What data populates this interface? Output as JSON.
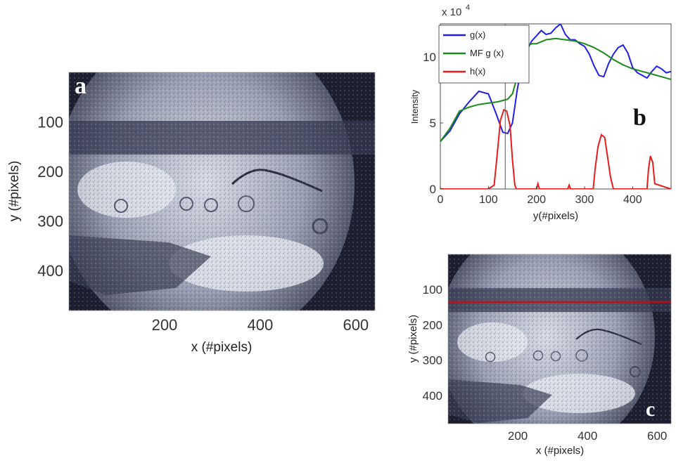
{
  "figure": {
    "panel_a": {
      "letter": "a",
      "xlabel": "x (#pixels)",
      "ylabel": "y (#pixels)"
    },
    "panel_b": {
      "letter": "b",
      "xlabel": "y(#pixels)",
      "ylabel": "Intensity",
      "exponent": "x 10",
      "exponent_power": "4"
    },
    "panel_c": {
      "letter": "c",
      "xlabel": "x (#pixels)",
      "ylabel": "y (#pixels)"
    }
  },
  "chart_data": [
    {
      "type": "image",
      "panel": "a",
      "xlabel": "x (#pixels)",
      "ylabel": "y (#pixels)",
      "xlim": [
        0,
        640
      ],
      "ylim": [
        480,
        0
      ],
      "xticks": [
        200,
        400,
        600
      ],
      "yticks": [
        100,
        200,
        300,
        400
      ],
      "colormap": "grayscale"
    },
    {
      "type": "line",
      "panel": "b",
      "xlabel": "y(#pixels)",
      "ylabel": "Intensity",
      "y_multiplier": "x 10^4",
      "xlim": [
        0,
        480
      ],
      "ylim": [
        0,
        12.5
      ],
      "xticks": [
        0,
        100,
        200,
        300,
        400
      ],
      "yticks": [
        0,
        5,
        10
      ],
      "legend_position": "top-left",
      "vertical_marker_x": 135,
      "series": [
        {
          "name": "g(x)",
          "color": "#1f1fe6",
          "x": [
            0,
            20,
            40,
            60,
            80,
            100,
            115,
            130,
            140,
            150,
            160,
            170,
            180,
            190,
            200,
            210,
            220,
            230,
            240,
            250,
            260,
            270,
            280,
            290,
            300,
            310,
            320,
            330,
            340,
            350,
            360,
            370,
            380,
            390,
            400,
            410,
            420,
            430,
            440,
            450,
            460,
            470,
            480
          ],
          "values": [
            3.6,
            4.4,
            5.7,
            6.6,
            7.4,
            7.2,
            5.8,
            4.3,
            4.2,
            5.0,
            7.5,
            9.5,
            10.5,
            11.2,
            11.6,
            12.0,
            11.7,
            11.8,
            12.2,
            12.5,
            11.7,
            11.3,
            11.3,
            11.0,
            10.8,
            10.2,
            9.3,
            8.6,
            8.5,
            9.5,
            10.2,
            10.7,
            10.9,
            10.3,
            9.2,
            8.8,
            8.6,
            8.4,
            8.9,
            9.3,
            9.1,
            8.8,
            8.9
          ]
        },
        {
          "name": "MF g (x)",
          "color": "#1a8a1a",
          "x": [
            0,
            20,
            40,
            60,
            80,
            100,
            120,
            140,
            150,
            160,
            170,
            180,
            190,
            200,
            220,
            240,
            260,
            280,
            300,
            320,
            340,
            360,
            380,
            400,
            420,
            440,
            460,
            480
          ],
          "values": [
            3.6,
            4.6,
            5.9,
            6.2,
            6.4,
            6.5,
            6.6,
            6.8,
            7.2,
            8.5,
            10.0,
            10.8,
            11.0,
            11.0,
            11.3,
            11.4,
            11.3,
            11.2,
            11.0,
            10.7,
            10.3,
            9.8,
            9.4,
            9.1,
            8.9,
            8.7,
            8.5,
            8.3
          ]
        },
        {
          "name": "h(x)",
          "color": "#e81c1c",
          "x": [
            0,
            100,
            112,
            118,
            125,
            132,
            138,
            145,
            150,
            155,
            158,
            200,
            203,
            206,
            265,
            268,
            271,
            318,
            322,
            328,
            335,
            342,
            348,
            354,
            360,
            430,
            433,
            437,
            442,
            446,
            480
          ],
          "values": [
            0,
            0,
            0.3,
            2.5,
            5.2,
            6.0,
            5.9,
            4.8,
            2.2,
            0.3,
            0,
            0,
            0.4,
            0,
            0,
            0.3,
            0,
            0,
            1.5,
            3.2,
            4.1,
            3.9,
            2.4,
            0.9,
            0,
            0,
            1.5,
            2.5,
            2.0,
            0.4,
            0
          ]
        }
      ]
    },
    {
      "type": "image",
      "panel": "c",
      "xlabel": "x (#pixels)",
      "ylabel": "y (#pixels)",
      "xlim": [
        0,
        640
      ],
      "ylim": [
        480,
        0
      ],
      "xticks": [
        200,
        400,
        600
      ],
      "yticks": [
        100,
        200,
        300,
        400
      ],
      "colormap": "grayscale",
      "horizontal_marker_y": 135,
      "marker_color": "#e00000"
    }
  ]
}
